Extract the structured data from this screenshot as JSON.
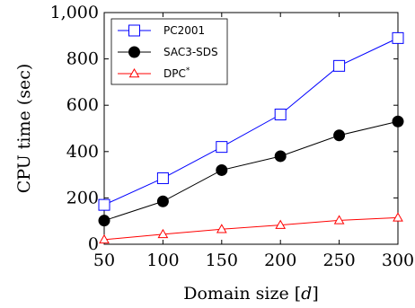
{
  "chart_data": {
    "type": "line",
    "x": [
      50,
      100,
      150,
      200,
      250,
      300
    ],
    "xlabel": "Domain size [",
    "xlabel_var": "d",
    "xlabel_close": "]",
    "ylabel": "CPU time (sec)",
    "xlim": [
      50,
      300
    ],
    "ylim": [
      0,
      1000
    ],
    "xticks": [
      50,
      100,
      150,
      200,
      250,
      300
    ],
    "yticks": [
      0,
      200,
      400,
      600,
      800,
      1000
    ],
    "ytick_labels": [
      "0",
      "200",
      "400",
      "600",
      "800",
      "1,000"
    ],
    "grid": false,
    "legend_position": "top-left",
    "series": [
      {
        "name": "PC2001",
        "marker": "square-open",
        "color": "#0000ff",
        "values": [
          170,
          285,
          420,
          560,
          770,
          890
        ]
      },
      {
        "name": "SAC3-SDS",
        "marker": "circle-filled",
        "color": "#000000",
        "values": [
          102,
          185,
          320,
          380,
          470,
          530
        ]
      },
      {
        "name": "DPC",
        "name_sup": "*",
        "marker": "triangle-open",
        "color": "#ff0000",
        "values": [
          20,
          43,
          65,
          83,
          103,
          115
        ]
      }
    ]
  }
}
